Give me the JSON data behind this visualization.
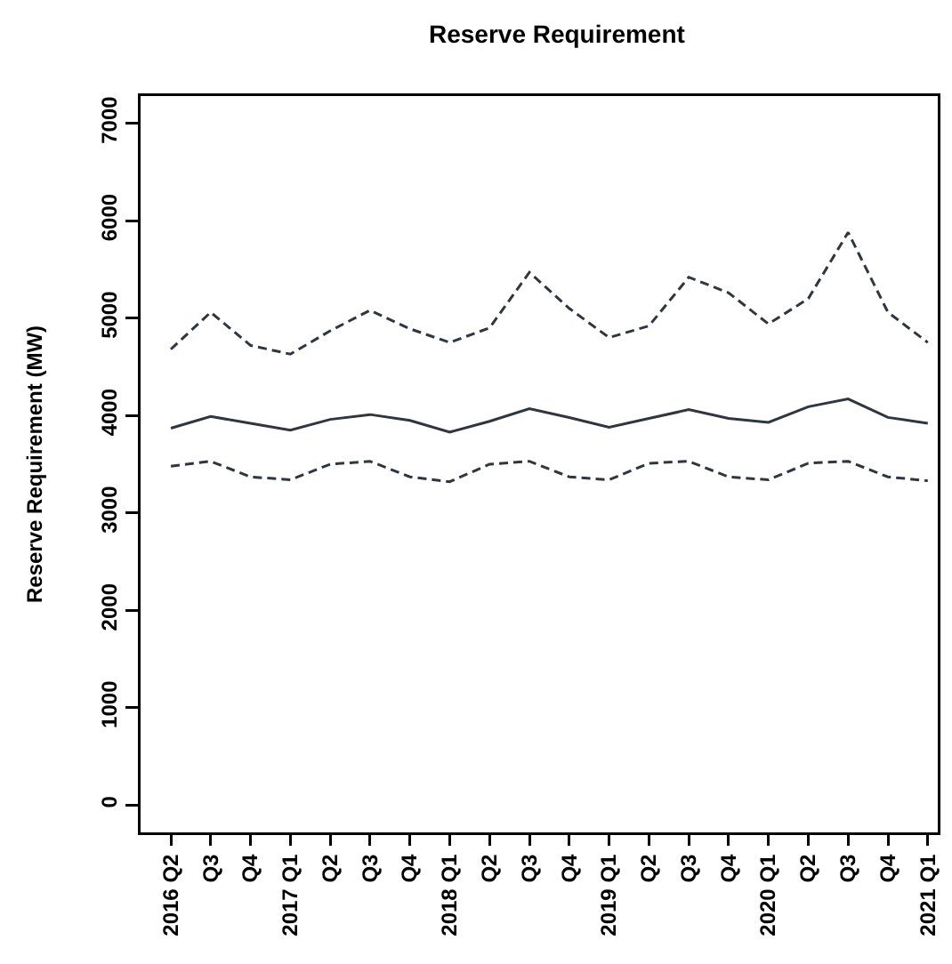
{
  "chart_data": {
    "type": "line",
    "title": "Reserve Requirement",
    "ylabel": "Reserve Requirement (MW)",
    "categories": [
      "2016 Q2",
      "Q3",
      "Q4",
      "2017 Q1",
      "Q2",
      "Q3",
      "Q4",
      "2018 Q1",
      "Q2",
      "Q3",
      "Q4",
      "2019 Q1",
      "Q2",
      "Q3",
      "Q4",
      "2020 Q1",
      "Q2",
      "Q3",
      "Q4",
      "2021 Q1"
    ],
    "series": [
      {
        "color": "#2f3640",
        "line_style": "dashed",
        "values": [
          4680,
          5060,
          4720,
          4630,
          4870,
          5080,
          4890,
          4750,
          4900,
          5470,
          5100,
          4800,
          4920,
          5420,
          5260,
          4940,
          5200,
          5880,
          5060,
          4750
        ]
      },
      {
        "color": "#2f3640",
        "line_style": "solid",
        "values": [
          3870,
          3990,
          3920,
          3850,
          3960,
          4010,
          3950,
          3830,
          3940,
          4070,
          3980,
          3880,
          3970,
          4060,
          3970,
          3930,
          4090,
          4170,
          3980,
          3920
        ]
      },
      {
        "color": "#2f3640",
        "line_style": "dashed",
        "values": [
          3480,
          3530,
          3370,
          3340,
          3500,
          3530,
          3370,
          3320,
          3500,
          3530,
          3370,
          3340,
          3510,
          3530,
          3370,
          3340,
          3510,
          3530,
          3370,
          3330
        ]
      }
    ],
    "ylim": [
      -280,
      7280
    ],
    "yticks": [
      0,
      1000,
      2000,
      3000,
      4000,
      5000,
      6000,
      7000
    ]
  }
}
